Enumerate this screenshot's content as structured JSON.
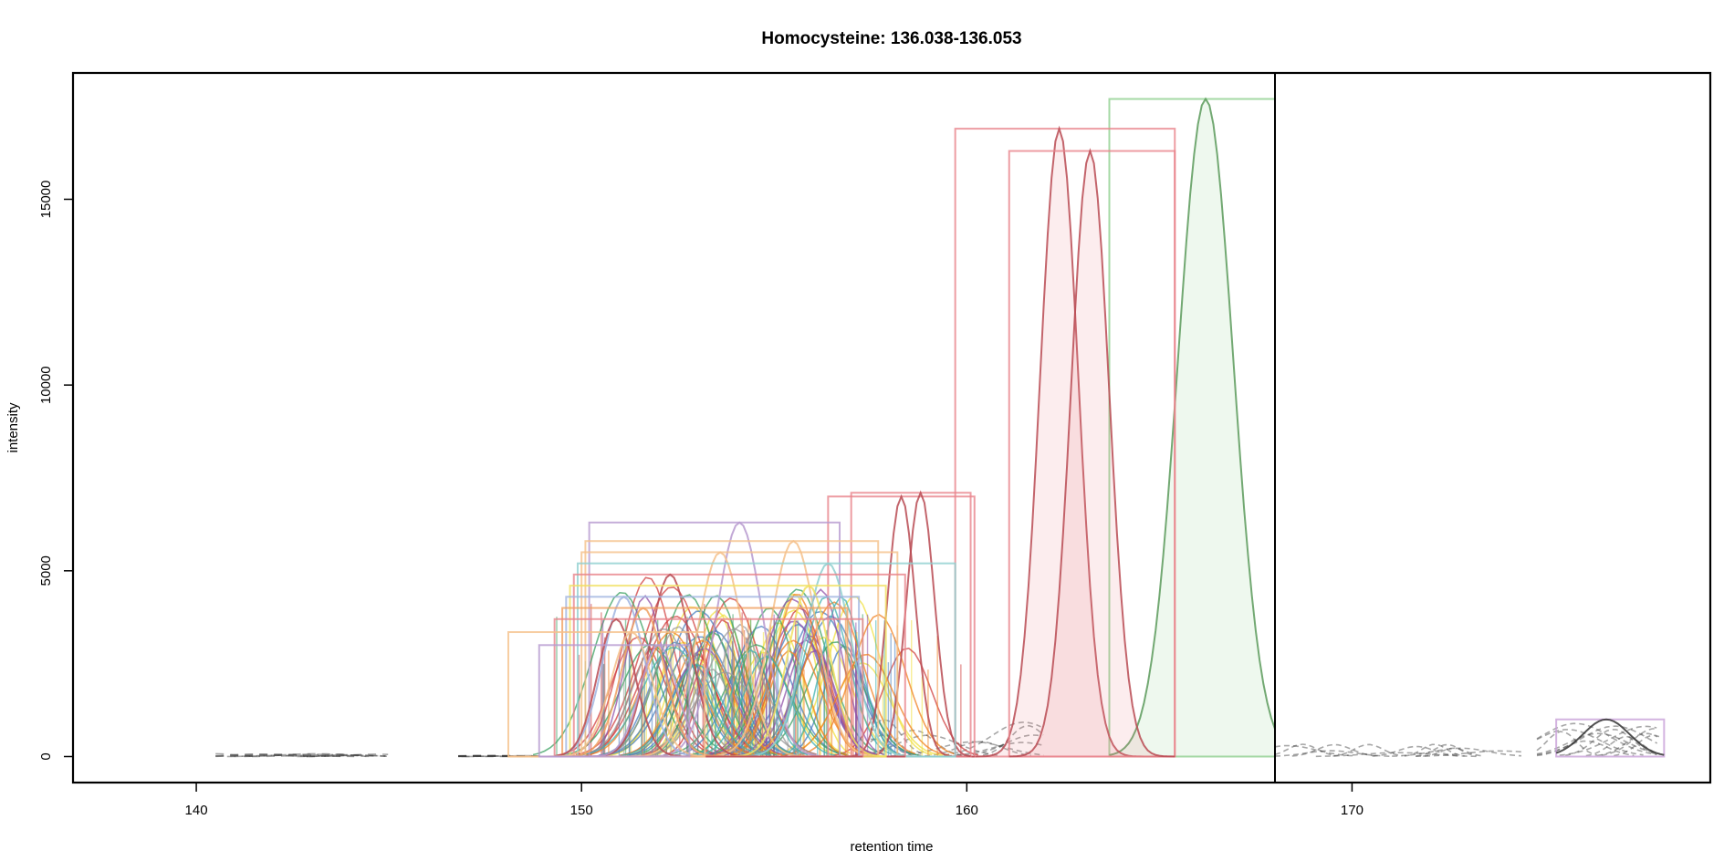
{
  "chart_data": {
    "type": "line",
    "title": "Homocysteine: 136.038-136.053",
    "xlabel": "retention time",
    "ylabel": "intensity",
    "xlim": [
      136.8,
      179.3
    ],
    "ylim": [
      -700,
      18400
    ],
    "x_ticks": [
      140,
      150,
      160,
      170
    ],
    "y_ticks": [
      0,
      5000,
      10000,
      15000
    ],
    "x_tick_labels": [
      "140",
      "150",
      "160",
      "170"
    ],
    "y_tick_labels": [
      "0",
      "5000",
      "10000",
      "15000"
    ],
    "grid": false,
    "legend": "none",
    "vertical_line_x": 168.0,
    "peak_windows": [
      {
        "xmin": 163.7,
        "xmax": 168.0,
        "ymax": 17700,
        "color": "#8fcf8f",
        "peak_x": 166.2,
        "width": 1.3
      },
      {
        "xmin": 159.7,
        "xmax": 165.4,
        "ymax": 16900,
        "color": "#e8848c",
        "peak_x": 162.4,
        "width": 0.9
      },
      {
        "xmin": 161.1,
        "xmax": 165.4,
        "ymax": 16300,
        "color": "#e8848c",
        "peak_x": 163.2,
        "width": 0.9
      },
      {
        "xmin": 156.4,
        "xmax": 160.2,
        "ymax": 7000,
        "color": "#e8848c",
        "peak_x": 158.3,
        "width": 0.6
      },
      {
        "xmin": 157.0,
        "xmax": 160.1,
        "ymax": 7100,
        "color": "#e8848c",
        "peak_x": 158.8,
        "width": 0.6
      },
      {
        "xmin": 150.2,
        "xmax": 156.7,
        "ymax": 6300,
        "color": "#b79acf",
        "peak_x": 154.1,
        "width": 1.0
      },
      {
        "xmin": 150.1,
        "xmax": 157.7,
        "ymax": 5800,
        "color": "#f5c08a",
        "peak_x": 155.5,
        "width": 1.0
      },
      {
        "xmin": 150.0,
        "xmax": 158.2,
        "ymax": 5500,
        "color": "#f5c08a",
        "peak_x": 153.6,
        "width": 1.0
      },
      {
        "xmin": 149.9,
        "xmax": 159.7,
        "ymax": 5200,
        "color": "#8fcfcf",
        "peak_x": 156.4,
        "width": 1.0
      },
      {
        "xmin": 149.8,
        "xmax": 158.4,
        "ymax": 4900,
        "color": "#e8848c",
        "peak_x": 152.3,
        "width": 0.9
      },
      {
        "xmin": 149.7,
        "xmax": 157.9,
        "ymax": 4600,
        "color": "#f0e060",
        "peak_x": 155.9,
        "width": 0.9
      },
      {
        "xmin": 149.6,
        "xmax": 157.2,
        "ymax": 4300,
        "color": "#9fb4e0",
        "peak_x": 151.1,
        "width": 0.9
      },
      {
        "xmin": 149.5,
        "xmax": 156.9,
        "ymax": 4000,
        "color": "#f0a060",
        "peak_x": 151.6,
        "width": 0.9
      },
      {
        "xmin": 149.3,
        "xmax": 157.3,
        "ymax": 3700,
        "color": "#e8848c",
        "peak_x": 150.9,
        "width": 0.8
      },
      {
        "xmin": 148.1,
        "xmax": 153.2,
        "ymax": 3350,
        "color": "#f5c08a",
        "peak_x": 151.3,
        "width": 0.9
      },
      {
        "xmin": 148.9,
        "xmax": 152.8,
        "ymax": 3000,
        "color": "#b79acf",
        "peak_x": 152.0,
        "width": 0.8
      },
      {
        "xmin": 175.3,
        "xmax": 178.1,
        "ymax": 1000,
        "color": "#c8a0d8",
        "peak_x": 176.6,
        "width": 1.0
      }
    ],
    "series_groups": [
      {
        "color": "#f0e040",
        "count": 14,
        "x_range": [
          152.5,
          157.5
        ],
        "height": 4500,
        "width": 0.65
      },
      {
        "color": "#d04040",
        "count": 10,
        "x_range": [
          150.5,
          158.5
        ],
        "height": 5000,
        "width": 0.7
      },
      {
        "color": "#4a7fc0",
        "count": 10,
        "x_range": [
          150.0,
          157.0
        ],
        "height": 4200,
        "width": 0.7
      },
      {
        "color": "#3aa060",
        "count": 9,
        "x_range": [
          150.3,
          157.5
        ],
        "height": 4600,
        "width": 0.7
      },
      {
        "color": "#9050a8",
        "count": 8,
        "x_range": [
          151.0,
          156.5
        ],
        "height": 5200,
        "width": 0.7
      },
      {
        "color": "#f08020",
        "count": 8,
        "x_range": [
          151.5,
          158.0
        ],
        "height": 4800,
        "width": 0.7
      },
      {
        "color": "#999999",
        "count": 6,
        "x_range": [
          150.5,
          154.5
        ],
        "height": 3800,
        "width": 0.7
      },
      {
        "color": "#40b0b0",
        "count": 6,
        "x_range": [
          152.0,
          157.0
        ],
        "height": 4400,
        "width": 0.7
      }
    ],
    "background_traces": [
      {
        "x_range": [
          140.5,
          145.0
        ],
        "height": 80
      },
      {
        "x_range": [
          146.8,
          149.0
        ],
        "height": 30
      },
      {
        "x_range": [
          157.5,
          162.0
        ],
        "height": 1000
      },
      {
        "x_range": [
          168.0,
          174.5
        ],
        "height": 350
      },
      {
        "x_range": [
          174.8,
          178.0
        ],
        "height": 900
      }
    ]
  }
}
